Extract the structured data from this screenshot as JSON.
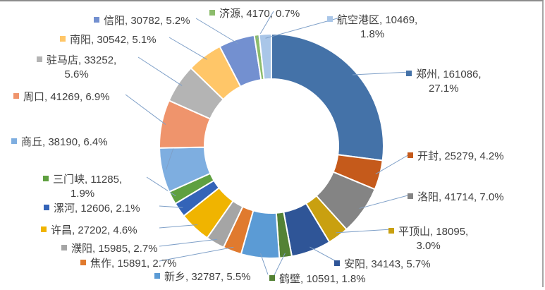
{
  "chart_data": {
    "type": "pie",
    "variant": "donut",
    "title": "",
    "label_format": "{name}, {value}, {percent}",
    "legend": "none (data labels with color keys)",
    "categories": [
      "郑州",
      "开封",
      "洛阳",
      "平顶山",
      "安阳",
      "鹤壁",
      "新乡",
      "焦作",
      "濮阳",
      "许昌",
      "漯河",
      "三门峡",
      "商丘",
      "周口",
      "驻马店",
      "南阳",
      "信阳",
      "济源",
      "航空港区"
    ],
    "values": [
      161086,
      25279,
      41714,
      18095,
      34143,
      10591,
      32787,
      15891,
      15985,
      27202,
      12606,
      11285,
      38190,
      41269,
      33252,
      30542,
      30782,
      4170,
      10469
    ],
    "percents": [
      "27.1%",
      "4.2%",
      "7.0%",
      "3.0%",
      "5.7%",
      "1.8%",
      "5.5%",
      "2.7%",
      "2.7%",
      "4.6%",
      "2.1%",
      "1.9%",
      "6.4%",
      "6.9%",
      "5.6%",
      "5.1%",
      "5.2%",
      "0.7%",
      "1.8%"
    ],
    "colors": [
      "#4472a8",
      "#c55a1b",
      "#848484",
      "#c9a010",
      "#2f5597",
      "#548235",
      "#5b9bd5",
      "#e07a2e",
      "#a5a5a5",
      "#f0b400",
      "#3464b8",
      "#5fa040",
      "#7eaee0",
      "#ef946c",
      "#b4b4b4",
      "#ffc668",
      "#7390d0",
      "#8cbc6c",
      "#a9c6e8"
    ]
  },
  "labels": [
    {
      "name": "郑州",
      "line1": "郑州, 161086,",
      "line2": "27.1%"
    },
    {
      "name": "开封",
      "line1": "开封, 25279, 4.2%"
    },
    {
      "name": "洛阳",
      "line1": "洛阳, 41714, 7.0%"
    },
    {
      "name": "平顶山",
      "line1": "平顶山, 18095,",
      "line2": "3.0%"
    },
    {
      "name": "安阳",
      "line1": "安阳, 34143, 5.7%"
    },
    {
      "name": "鹤壁",
      "line1": "鹤壁, 10591, 1.8%"
    },
    {
      "name": "新乡",
      "line1": "新乡, 32787, 5.5%"
    },
    {
      "name": "焦作",
      "line1": "焦作, 15891, 2.7%"
    },
    {
      "name": "濮阳",
      "line1": "濮阳, 15985, 2.7%"
    },
    {
      "name": "许昌",
      "line1": "许昌, 27202, 4.6%"
    },
    {
      "name": "漯河",
      "line1": "漯河, 12606, 2.1%"
    },
    {
      "name": "三门峡",
      "line1": "三门峡, 11285,",
      "line2": "1.9%"
    },
    {
      "name": "商丘",
      "line1": "商丘, 38190, 6.4%"
    },
    {
      "name": "周口",
      "line1": "周口, 41269, 6.9%"
    },
    {
      "name": "驻马店",
      "line1": "驻马店, 33252,",
      "line2": "5.6%"
    },
    {
      "name": "南阳",
      "line1": "南阳, 30542, 5.1%"
    },
    {
      "name": "信阳",
      "line1": "信阳, 30782, 5.2%"
    },
    {
      "name": "济源",
      "line1": "济源, 4170, 0.7%"
    },
    {
      "name": "航空港区",
      "line1": "航空港区, 10469,",
      "line2": "1.8%"
    }
  ]
}
